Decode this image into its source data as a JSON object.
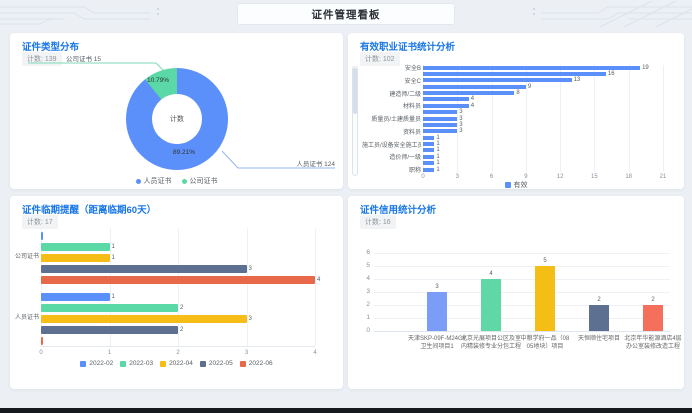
{
  "header": {
    "title": "证件管理看板"
  },
  "panels": [
    {
      "id": "cert_type",
      "title": "证件类型分布",
      "badge": "计数: 139"
    },
    {
      "id": "valid_cert",
      "title": "有效职业证书统计分析",
      "badge": "计数: 102"
    },
    {
      "id": "expiry",
      "title": "证件临期提醒（距离临期60天）",
      "badge": "计数: 17"
    },
    {
      "id": "credit",
      "title": "证件信用统计分析",
      "badge": "计数: 16"
    }
  ],
  "chart_data": [
    {
      "type": "pie",
      "title": "证件类型分布",
      "center_label": "计数",
      "total": 139,
      "slices": [
        {
          "name": "人员证书",
          "value": 124,
          "percent": "89.21%",
          "color": "#5B8FF9"
        },
        {
          "name": "公司证书",
          "value": 15,
          "percent": "10.79%",
          "color": "#5AD8A6"
        }
      ],
      "callout_labels": [
        "公司证书 15",
        "人员证书 124"
      ],
      "legend": [
        "人员证书",
        "公司证书"
      ]
    },
    {
      "type": "bar",
      "orientation": "horizontal",
      "title": "有效职业证书统计分析",
      "categories": [
        "安全B",
        "",
        "安全C",
        "",
        "建造师/二级",
        "",
        "材料员",
        "",
        "质量员/土建质量员",
        "",
        "资料员",
        "",
        "施工员/设备安全施工员",
        "",
        "造价师/一级",
        "",
        "职称"
      ],
      "values": [
        19,
        16,
        13,
        9,
        8,
        4,
        4,
        3,
        3,
        3,
        3,
        1,
        1,
        1,
        1,
        1,
        1
      ],
      "series_name": "有效",
      "bar_color": "#5B8FF9",
      "xticks": [
        0,
        3,
        6,
        9,
        12,
        15,
        18,
        21
      ],
      "xlim": [
        0,
        21
      ],
      "legend": [
        "有效"
      ],
      "scrollbar": true
    },
    {
      "type": "bar",
      "orientation": "horizontal",
      "grouped": true,
      "title": "证件临期提醒（距离临期60天）",
      "categories": [
        "公司证书",
        "人员证书"
      ],
      "series": [
        {
          "name": "2022-02",
          "color": "#5B8FF9",
          "values": [
            0,
            1
          ]
        },
        {
          "name": "2022-03",
          "color": "#5AD8A6",
          "values": [
            1,
            2
          ]
        },
        {
          "name": "2022-04",
          "color": "#F6BD16",
          "values": [
            1,
            3
          ]
        },
        {
          "name": "2022-05",
          "color": "#5D7092",
          "values": [
            3,
            2
          ]
        },
        {
          "name": "2022-06",
          "color": "#E8684A",
          "values": [
            4,
            0
          ]
        }
      ],
      "xticks": [
        0,
        1,
        2,
        3,
        4
      ],
      "xlim": [
        0,
        4
      ]
    },
    {
      "type": "bar",
      "orientation": "vertical",
      "title": "证件信用统计分析",
      "categories": [
        "天津SKP-09F-M24G#\n卫生间项目1",
        "北京光展项目公区及室\n内精装修专业分包工程",
        "中粮学府一品（08\n05地块）项目",
        "天恒顺住宅项目",
        "北京年华能源酒店4层\n办公室装修改造工程"
      ],
      "values": [
        3,
        4,
        5,
        2,
        2
      ],
      "colors": [
        "#7B9DF8",
        "#5FD8A5",
        "#F5BE17",
        "#5D7092",
        "#F4705C"
      ],
      "yticks": [
        0,
        1,
        2,
        3,
        4,
        5,
        6
      ],
      "ylim": [
        0,
        6
      ]
    }
  ]
}
